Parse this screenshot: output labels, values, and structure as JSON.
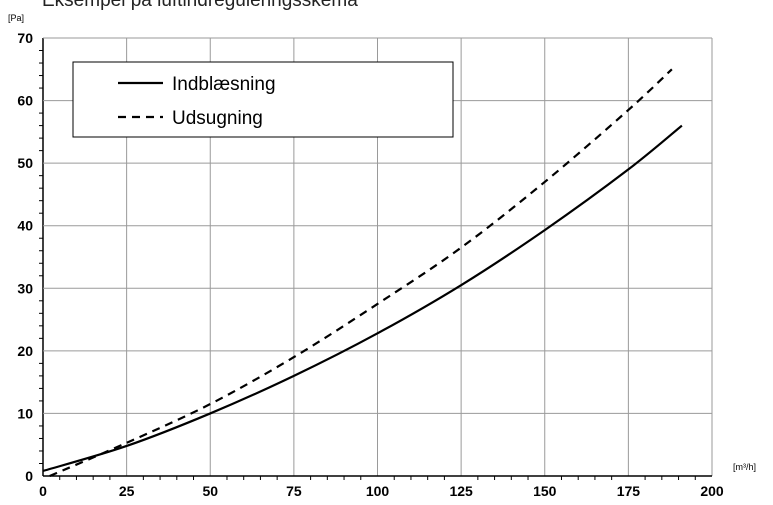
{
  "chart_data": {
    "type": "line",
    "title": "Eksempel på luftindreguleringsskema",
    "xlabel": "[m³/h]",
    "ylabel": "[Pa]",
    "xlim": [
      0,
      200
    ],
    "ylim": [
      0,
      70
    ],
    "xticks": [
      0,
      25,
      50,
      75,
      100,
      125,
      150,
      175,
      200
    ],
    "yticks": [
      0,
      10,
      20,
      30,
      40,
      50,
      60,
      70
    ],
    "grid": true,
    "legend": "top-left",
    "series": [
      {
        "name": "Indblæsning",
        "style": "solid",
        "color": "#000000",
        "x": [
          0,
          25,
          50,
          75,
          100,
          125,
          150,
          175,
          191
        ],
        "y": [
          0.8,
          4.8,
          10,
          16,
          22.8,
          30.5,
          39.3,
          49,
          56
        ]
      },
      {
        "name": "Udsugning",
        "style": "dashed",
        "color": "#000000",
        "x": [
          2,
          25,
          50,
          75,
          100,
          125,
          150,
          175,
          188
        ],
        "y": [
          0,
          5.3,
          11.5,
          19,
          27.5,
          36.5,
          47,
          58.5,
          65
        ]
      }
    ]
  }
}
